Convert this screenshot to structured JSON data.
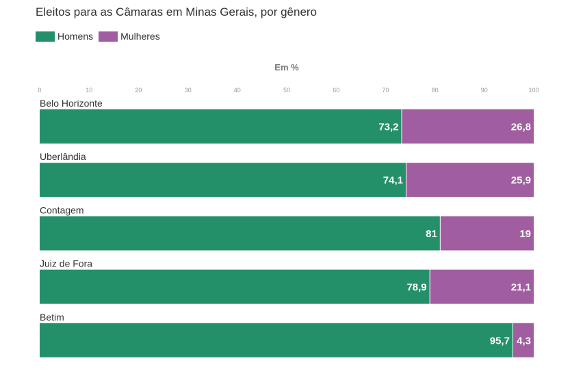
{
  "chart_data": {
    "type": "bar",
    "orientation": "horizontal",
    "stacked": true,
    "title": "Eleitos para as Câmaras em Minas Gerais, por gênero",
    "xlabel": "Em %",
    "ylabel": "",
    "xlim": [
      0,
      100
    ],
    "ticks": [
      "0",
      "10",
      "20",
      "30",
      "40",
      "50",
      "60",
      "70",
      "80",
      "90",
      "100"
    ],
    "tick_values": [
      0,
      10,
      20,
      30,
      40,
      50,
      60,
      70,
      80,
      90,
      100
    ],
    "legend_position": "top-left",
    "categories": [
      "Belo Horizonte",
      "Uberlândia",
      "Contagem",
      "Juiz de Fora",
      "Betim"
    ],
    "series": [
      {
        "name": "Homens",
        "color": "#23906a",
        "values": [
          73.2,
          74.1,
          81,
          78.9,
          95.7
        ],
        "labels": [
          "73,2",
          "74,1",
          "81",
          "78,9",
          "95,7"
        ]
      },
      {
        "name": "Mulheres",
        "color": "#a05ea0",
        "values": [
          26.8,
          25.9,
          19,
          21.1,
          4.3
        ],
        "labels": [
          "26,8",
          "25,9",
          "19",
          "21,1",
          "4,3"
        ]
      }
    ]
  }
}
